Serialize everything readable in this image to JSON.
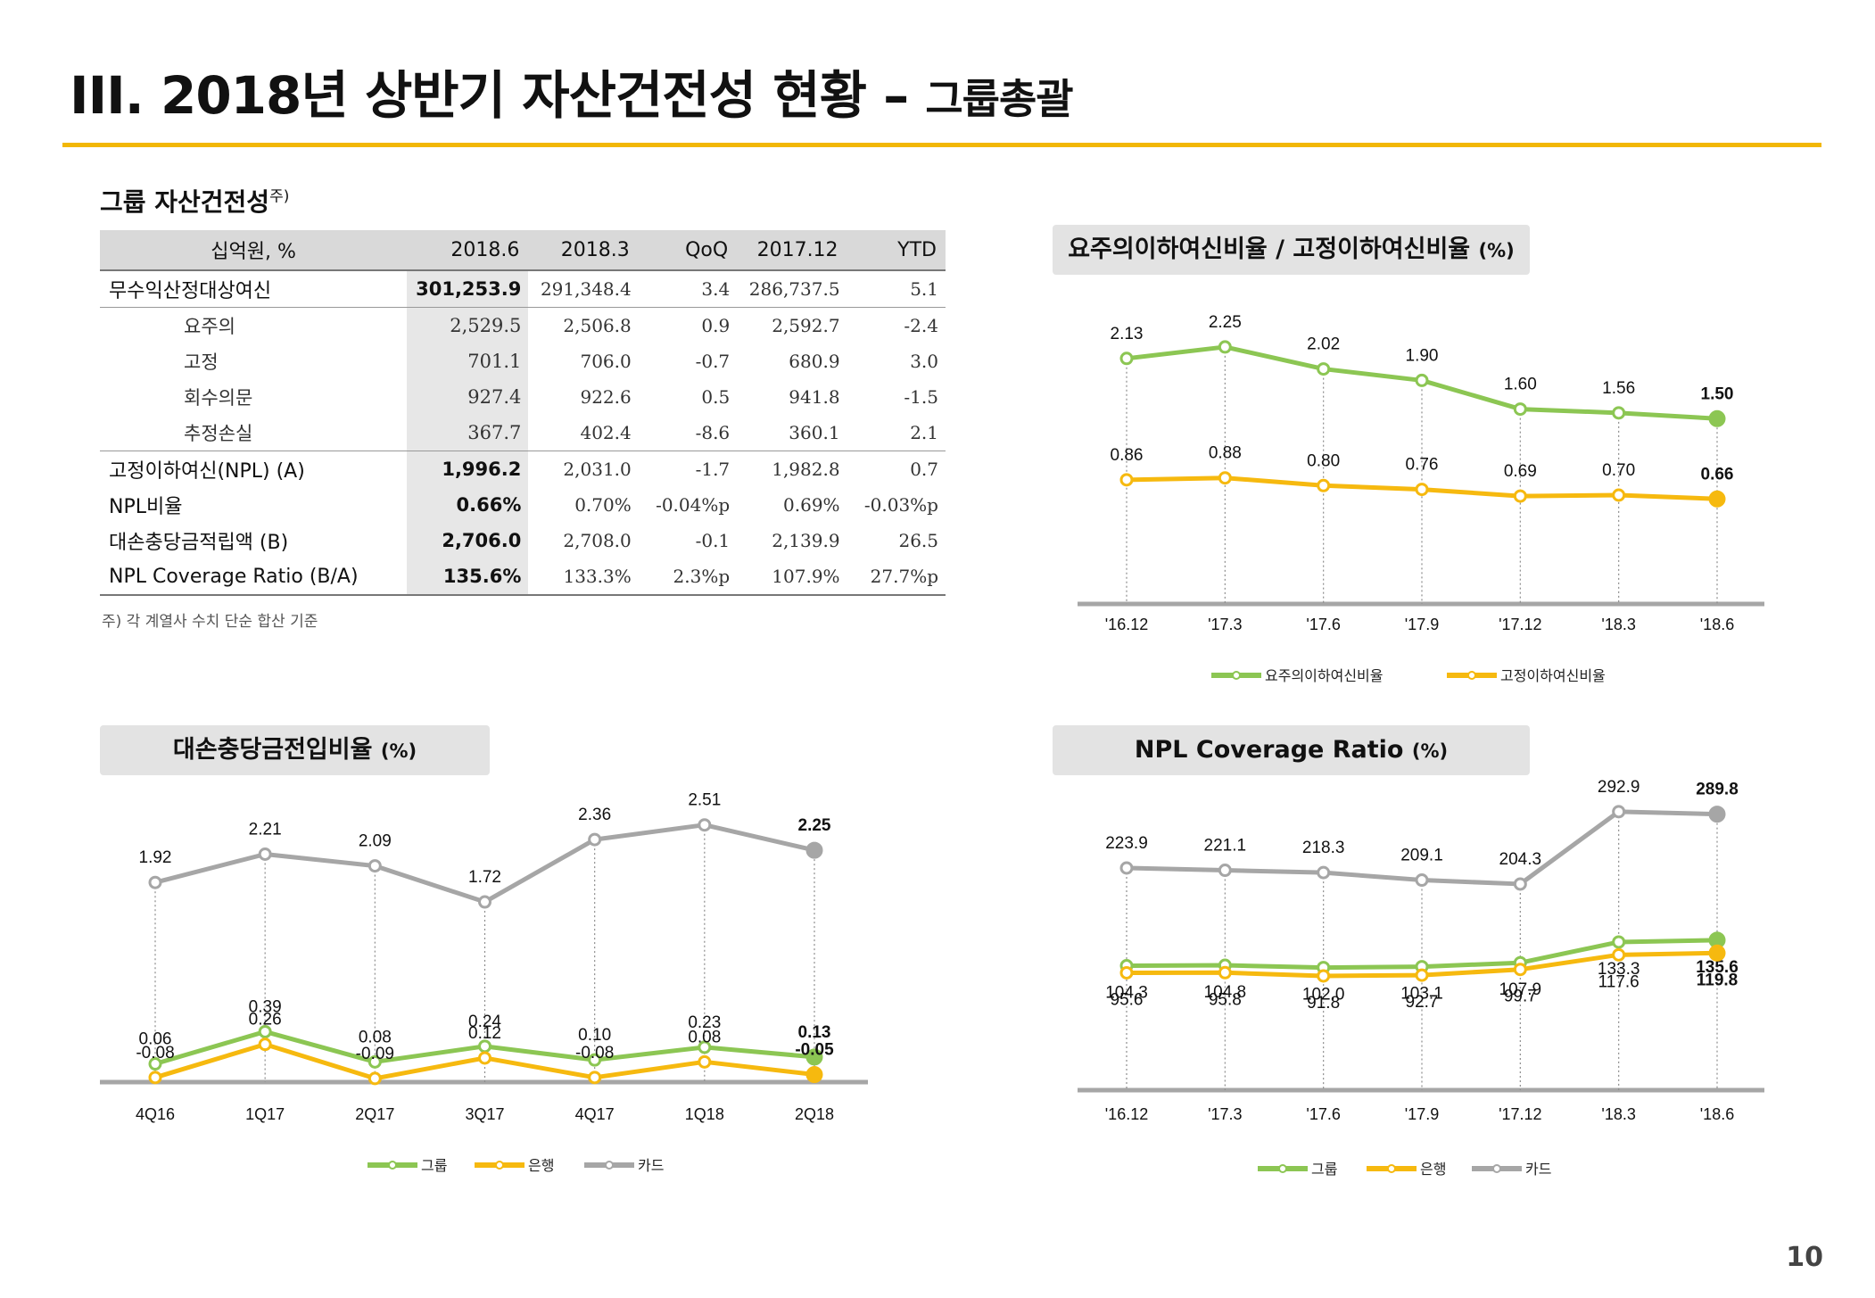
{
  "page": {
    "title_main": "III. 2018년 상반기 자산건전성 현황 –",
    "title_sub": "그룹총괄",
    "page_number": "10",
    "accent_color": "#F2B705"
  },
  "table": {
    "title": "그룹 자산건전성",
    "title_note": "주)",
    "headers": [
      "십억원, %",
      "2018.6",
      "2018.3",
      "QoQ",
      "2017.12",
      "YTD"
    ],
    "rows": [
      {
        "label": "무수익산정대상여신",
        "values": [
          "301,253.9",
          "291,348.4",
          "3.4",
          "286,737.5",
          "5.1"
        ]
      },
      {
        "label": "요주의",
        "values": [
          "2,529.5",
          "2,506.8",
          "0.9",
          "2,592.7",
          "-2.4"
        ]
      },
      {
        "label": "고정",
        "values": [
          "701.1",
          "706.0",
          "-0.7",
          "680.9",
          "3.0"
        ]
      },
      {
        "label": "회수의문",
        "values": [
          "927.4",
          "922.6",
          "0.5",
          "941.8",
          "-1.5"
        ]
      },
      {
        "label": "추정손실",
        "values": [
          "367.7",
          "402.4",
          "-8.6",
          "360.1",
          "2.1"
        ]
      },
      {
        "label": "고정이하여신(NPL) (A)",
        "values": [
          "1,996.2",
          "2,031.0",
          "-1.7",
          "1,982.8",
          "0.7"
        ]
      },
      {
        "label": "NPL비율",
        "values": [
          "0.66%",
          "0.70%",
          "-0.04%p",
          "0.69%",
          "-0.03%p"
        ]
      },
      {
        "label": "대손충당금적립액 (B)",
        "values": [
          "2,706.0",
          "2,708.0",
          "-0.1",
          "2,139.9",
          "26.5"
        ]
      },
      {
        "label": "NPL Coverage Ratio (B/A)",
        "values": [
          "135.6%",
          "133.3%",
          "2.3%p",
          "107.9%",
          "27.7%p"
        ]
      }
    ],
    "footnote": "주) 각 계열사 수치 단순 합산 기준"
  },
  "chart_data": [
    {
      "id": "c1",
      "type": "line",
      "title": "요주의이하여신비율 / 고정이하여신비율",
      "unit": "(%)",
      "categories": [
        "'16.12",
        "'17.3",
        "'17.6",
        "'17.9",
        "'17.12",
        "'18.3",
        "'18.6"
      ],
      "ylim": [
        0,
        2.8
      ],
      "grid": false,
      "series": [
        {
          "name": "요주의이하여신비율",
          "color": "#8CC653",
          "values": [
            2.13,
            2.25,
            2.02,
            1.9,
            1.6,
            1.56,
            1.5
          ],
          "labels": [
            "2.13",
            "2.25",
            "2.02",
            "1.90",
            "1.60",
            "1.56",
            "1.50"
          ],
          "label_pos": "above"
        },
        {
          "name": "고정이하여신비율",
          "color": "#F6B90F",
          "values": [
            0.86,
            0.88,
            0.8,
            0.76,
            0.69,
            0.7,
            0.66
          ],
          "labels": [
            "0.86",
            "0.88",
            "0.80",
            "0.76",
            "0.69",
            "0.70",
            "0.66"
          ],
          "label_pos": "above"
        }
      ],
      "legend_position": "bottom"
    },
    {
      "id": "c2",
      "type": "line",
      "title": "대손충당금전입비율",
      "unit": "(%)",
      "categories": [
        "4Q16",
        "1Q17",
        "2Q17",
        "3Q17",
        "4Q17",
        "1Q18",
        "2Q18"
      ],
      "ylim": [
        -0.1,
        2.8
      ],
      "grid": false,
      "series": [
        {
          "name": "그룹",
          "color": "#8CC653",
          "values": [
            0.06,
            0.39,
            0.08,
            0.24,
            0.1,
            0.23,
            0.13
          ],
          "labels": [
            "0.06",
            "0.39",
            "0.08",
            "0.24",
            "0.10",
            "0.23",
            "0.13"
          ],
          "label_pos": "above"
        },
        {
          "name": "은행",
          "color": "#F6B90F",
          "values": [
            -0.08,
            0.26,
            -0.09,
            0.12,
            -0.08,
            0.08,
            -0.05
          ],
          "labels": [
            "-0.08",
            "0.26",
            "-0.09",
            "0.12",
            "-0.08",
            "0.08",
            "-0.05"
          ],
          "label_pos": "above"
        },
        {
          "name": "카드",
          "color": "#A6A6A6",
          "values": [
            1.92,
            2.21,
            2.09,
            1.72,
            2.36,
            2.51,
            2.25
          ],
          "labels": [
            "1.92",
            "2.21",
            "2.09",
            "1.72",
            "2.36",
            "2.51",
            "2.25"
          ],
          "label_pos": "above"
        }
      ],
      "legend_position": "bottom"
    },
    {
      "id": "c3",
      "type": "line",
      "title": "NPL Coverage Ratio",
      "unit": "(%)",
      "categories": [
        "'16.12",
        "'17.3",
        "'17.6",
        "'17.9",
        "'17.12",
        "'18.3",
        "'18.6"
      ],
      "ylim": [
        0,
        320
      ],
      "grid": false,
      "series": [
        {
          "name": "그룹",
          "color": "#8CC653",
          "values": [
            104.3,
            104.8,
            102.0,
            103.1,
            107.9,
            133.3,
            135.6
          ],
          "labels": [
            "104.3",
            "104.8",
            "102.0",
            "103.1",
            "107.9",
            "133.3",
            "135.6"
          ],
          "label_pos": "below"
        },
        {
          "name": "은행",
          "color": "#F6B90F",
          "values": [
            95.6,
            95.8,
            91.8,
            92.7,
            99.7,
            117.6,
            119.8
          ],
          "labels": [
            "95.6",
            "95.8",
            "91.8",
            "92.7",
            "99.7",
            "117.6",
            "119.8"
          ],
          "label_pos": "below"
        },
        {
          "name": "카드",
          "color": "#A6A6A6",
          "values": [
            223.9,
            221.1,
            218.3,
            209.1,
            204.3,
            292.9,
            289.8
          ],
          "labels": [
            "223.9",
            "221.1",
            "218.3",
            "209.1",
            "204.3",
            "292.9",
            "289.8"
          ],
          "label_pos": "above"
        }
      ],
      "legend_position": "bottom"
    }
  ]
}
